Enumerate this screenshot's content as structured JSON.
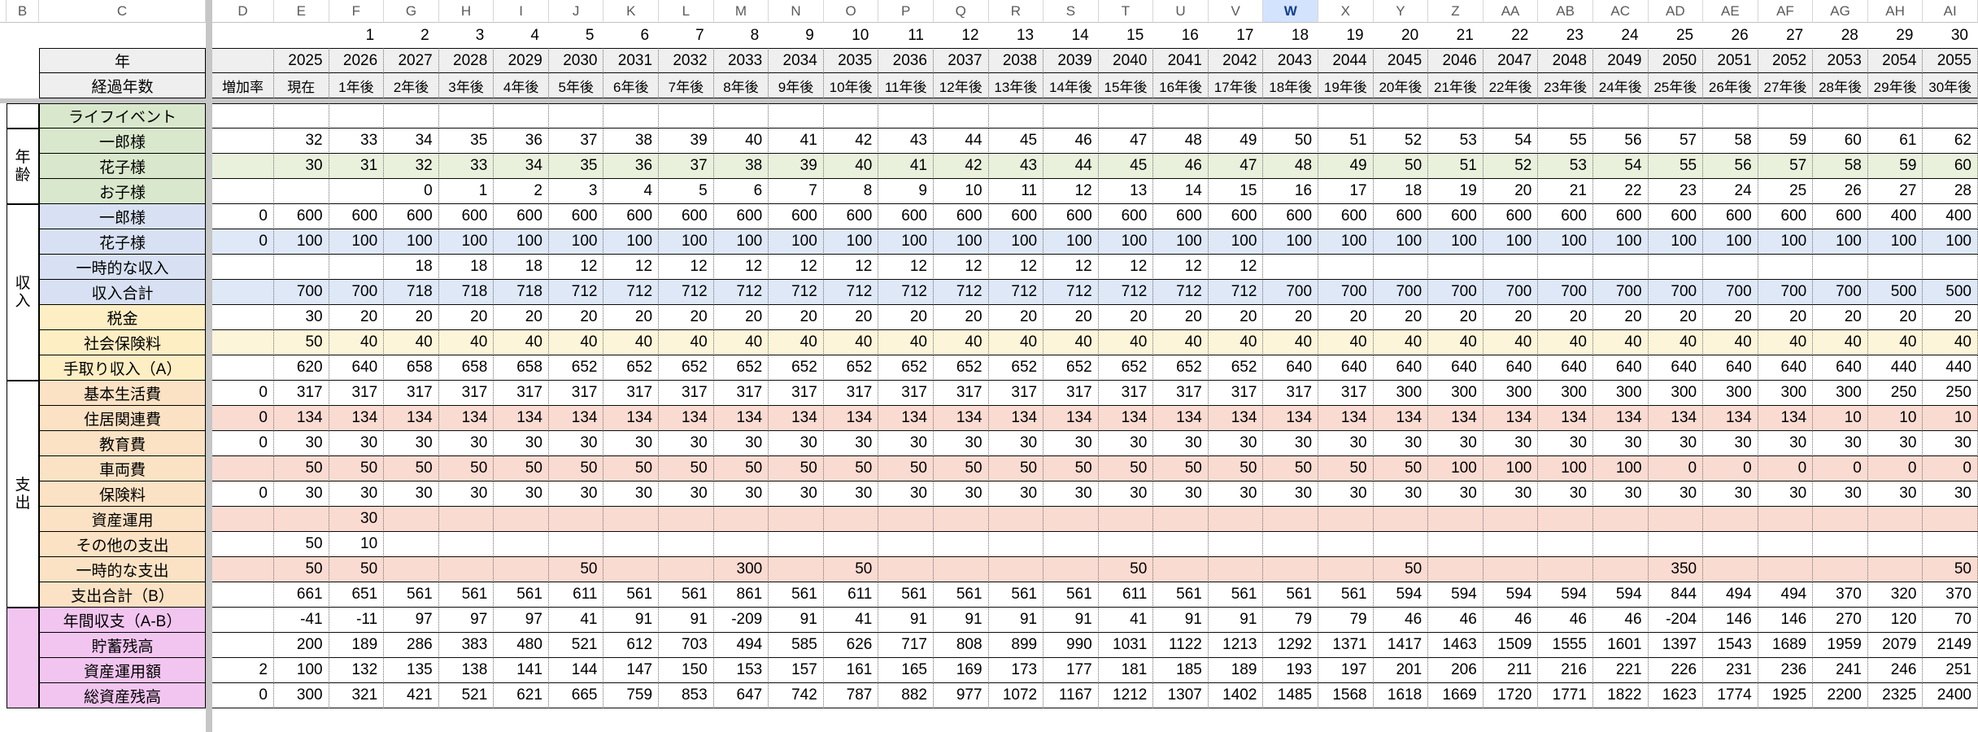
{
  "palette": {
    "white": "#ffffff",
    "gray": "#efefef",
    "green": "#d9e7cc",
    "green_row": "#e9f1dd",
    "blue": "#d8e1f3",
    "blue_row": "#dee8f7",
    "yellow": "#feeec3",
    "yellow_row": "#fdf5da",
    "peach": "#fbe2c4",
    "pink_row": "#fadbd2",
    "magenta": "#f2c5f0",
    "header_selected_bg": "#d3e3fd",
    "header_selected_text": "#123f8c",
    "pane_divider": "#c6c6c6"
  },
  "header": {
    "column_letters": [
      "B",
      "C",
      "D",
      "E",
      "F",
      "G",
      "H",
      "I",
      "J",
      "K",
      "L",
      "M",
      "N",
      "O",
      "P",
      "Q",
      "R",
      "S",
      "T",
      "U",
      "V",
      "W",
      "X",
      "Y",
      "Z",
      "AA",
      "AB",
      "AC",
      "AD",
      "AE",
      "AF",
      "AG",
      "AH",
      "AI"
    ],
    "selected_column": "W"
  },
  "top": {
    "index_numbers": [
      "",
      "1",
      "2",
      "3",
      "4",
      "5",
      "6",
      "7",
      "8",
      "9",
      "10",
      "11",
      "12",
      "13",
      "14",
      "15",
      "16",
      "17",
      "18",
      "19",
      "20",
      "21",
      "22",
      "23",
      "24",
      "25",
      "26",
      "27",
      "28",
      "29",
      "30"
    ],
    "year_label": "年",
    "years": [
      "2025",
      "2026",
      "2027",
      "2028",
      "2029",
      "2030",
      "2031",
      "2032",
      "2033",
      "2034",
      "2035",
      "2036",
      "2037",
      "2038",
      "2039",
      "2040",
      "2041",
      "2042",
      "2043",
      "2044",
      "2045",
      "2046",
      "2047",
      "2048",
      "2049",
      "2050",
      "2051",
      "2052",
      "2053",
      "2054",
      "2055"
    ],
    "elapsed_label": "経過年数",
    "rate_header": "増加率",
    "elapsed": [
      "現在",
      "1年後",
      "2年後",
      "3年後",
      "4年後",
      "5年後",
      "6年後",
      "7年後",
      "8年後",
      "9年後",
      "10年後",
      "11年後",
      "12年後",
      "13年後",
      "14年後",
      "15年後",
      "16年後",
      "17年後",
      "18年後",
      "19年後",
      "20年後",
      "21年後",
      "22年後",
      "23年後",
      "24年後",
      "25年後",
      "26年後",
      "27年後",
      "28年後",
      "29年後",
      "30年後"
    ]
  },
  "groups": [
    {
      "label": "",
      "start": 0,
      "span": 1,
      "bg": "white"
    },
    {
      "label": "年齢",
      "start": 1,
      "span": 3,
      "bg": "white"
    },
    {
      "label": "収入",
      "start": 4,
      "span": 7,
      "bg": "white"
    },
    {
      "label": "支出",
      "start": 11,
      "span": 9,
      "bg": "white"
    },
    {
      "label": "",
      "start": 20,
      "span": 4,
      "bg": "magenta"
    }
  ],
  "rows": [
    {
      "label": "ライフイベント",
      "lbg": "green",
      "rbg": "",
      "rate": "",
      "values": [
        "",
        "",
        "",
        "",
        "",
        "",
        "",
        "",
        "",
        "",
        "",
        "",
        "",
        "",
        "",
        "",
        "",
        "",
        "",
        "",
        "",
        "",
        "",
        "",
        "",
        "",
        "",
        "",
        "",
        "",
        ""
      ]
    },
    {
      "label": "一郎様",
      "lbg": "green",
      "rbg": "",
      "rate": "",
      "values": [
        "32",
        "33",
        "34",
        "35",
        "36",
        "37",
        "38",
        "39",
        "40",
        "41",
        "42",
        "43",
        "44",
        "45",
        "46",
        "47",
        "48",
        "49",
        "50",
        "51",
        "52",
        "53",
        "54",
        "55",
        "56",
        "57",
        "58",
        "59",
        "60",
        "61",
        "62"
      ]
    },
    {
      "label": "花子様",
      "lbg": "green",
      "rbg": "green_row",
      "rate": "",
      "values": [
        "30",
        "31",
        "32",
        "33",
        "34",
        "35",
        "36",
        "37",
        "38",
        "39",
        "40",
        "41",
        "42",
        "43",
        "44",
        "45",
        "46",
        "47",
        "48",
        "49",
        "50",
        "51",
        "52",
        "53",
        "54",
        "55",
        "56",
        "57",
        "58",
        "59",
        "60"
      ]
    },
    {
      "label": "お子様",
      "lbg": "green",
      "rbg": "",
      "rate": "",
      "values": [
        "",
        "",
        "0",
        "1",
        "2",
        "3",
        "4",
        "5",
        "6",
        "7",
        "8",
        "9",
        "10",
        "11",
        "12",
        "13",
        "14",
        "15",
        "16",
        "17",
        "18",
        "19",
        "20",
        "21",
        "22",
        "23",
        "24",
        "25",
        "26",
        "27",
        "28"
      ]
    },
    {
      "label": "一郎様",
      "lbg": "blue",
      "rbg": "",
      "rate": "0",
      "values": [
        "600",
        "600",
        "600",
        "600",
        "600",
        "600",
        "600",
        "600",
        "600",
        "600",
        "600",
        "600",
        "600",
        "600",
        "600",
        "600",
        "600",
        "600",
        "600",
        "600",
        "600",
        "600",
        "600",
        "600",
        "600",
        "600",
        "600",
        "600",
        "600",
        "400",
        "400"
      ]
    },
    {
      "label": "花子様",
      "lbg": "blue",
      "rbg": "blue_row",
      "rate": "0",
      "values": [
        "100",
        "100",
        "100",
        "100",
        "100",
        "100",
        "100",
        "100",
        "100",
        "100",
        "100",
        "100",
        "100",
        "100",
        "100",
        "100",
        "100",
        "100",
        "100",
        "100",
        "100",
        "100",
        "100",
        "100",
        "100",
        "100",
        "100",
        "100",
        "100",
        "100",
        "100"
      ]
    },
    {
      "label": "一時的な収入",
      "lbg": "blue",
      "rbg": "",
      "rate": "",
      "values": [
        "",
        "",
        "18",
        "18",
        "18",
        "12",
        "12",
        "12",
        "12",
        "12",
        "12",
        "12",
        "12",
        "12",
        "12",
        "12",
        "12",
        "12",
        "",
        "",
        "",
        "",
        "",
        "",
        "",
        "",
        "",
        "",
        "",
        "",
        ""
      ]
    },
    {
      "label": "収入合計",
      "lbg": "blue",
      "rbg": "blue_row",
      "rate": "",
      "values": [
        "700",
        "700",
        "718",
        "718",
        "718",
        "712",
        "712",
        "712",
        "712",
        "712",
        "712",
        "712",
        "712",
        "712",
        "712",
        "712",
        "712",
        "712",
        "700",
        "700",
        "700",
        "700",
        "700",
        "700",
        "700",
        "700",
        "700",
        "700",
        "700",
        "500",
        "500"
      ]
    },
    {
      "label": "税金",
      "lbg": "yellow",
      "rbg": "",
      "rate": "",
      "values": [
        "30",
        "20",
        "20",
        "20",
        "20",
        "20",
        "20",
        "20",
        "20",
        "20",
        "20",
        "20",
        "20",
        "20",
        "20",
        "20",
        "20",
        "20",
        "20",
        "20",
        "20",
        "20",
        "20",
        "20",
        "20",
        "20",
        "20",
        "20",
        "20",
        "20",
        "20"
      ]
    },
    {
      "label": "社会保険料",
      "lbg": "yellow",
      "rbg": "yellow_row",
      "rate": "",
      "values": [
        "50",
        "40",
        "40",
        "40",
        "40",
        "40",
        "40",
        "40",
        "40",
        "40",
        "40",
        "40",
        "40",
        "40",
        "40",
        "40",
        "40",
        "40",
        "40",
        "40",
        "40",
        "40",
        "40",
        "40",
        "40",
        "40",
        "40",
        "40",
        "40",
        "40",
        "40"
      ]
    },
    {
      "label": "手取り収入（A）",
      "lbg": "yellow",
      "rbg": "",
      "rate": "",
      "values": [
        "620",
        "640",
        "658",
        "658",
        "658",
        "652",
        "652",
        "652",
        "652",
        "652",
        "652",
        "652",
        "652",
        "652",
        "652",
        "652",
        "652",
        "652",
        "640",
        "640",
        "640",
        "640",
        "640",
        "640",
        "640",
        "640",
        "640",
        "640",
        "640",
        "440",
        "440"
      ]
    },
    {
      "label": "基本生活費",
      "lbg": "peach",
      "rbg": "",
      "rate": "0",
      "values": [
        "317",
        "317",
        "317",
        "317",
        "317",
        "317",
        "317",
        "317",
        "317",
        "317",
        "317",
        "317",
        "317",
        "317",
        "317",
        "317",
        "317",
        "317",
        "317",
        "317",
        "300",
        "300",
        "300",
        "300",
        "300",
        "300",
        "300",
        "300",
        "300",
        "250",
        "250"
      ]
    },
    {
      "label": "住居関連費",
      "lbg": "peach",
      "rbg": "pink_row",
      "rate": "0",
      "values": [
        "134",
        "134",
        "134",
        "134",
        "134",
        "134",
        "134",
        "134",
        "134",
        "134",
        "134",
        "134",
        "134",
        "134",
        "134",
        "134",
        "134",
        "134",
        "134",
        "134",
        "134",
        "134",
        "134",
        "134",
        "134",
        "134",
        "134",
        "134",
        "10",
        "10",
        "10"
      ]
    },
    {
      "label": "教育費",
      "lbg": "peach",
      "rbg": "",
      "rate": "0",
      "values": [
        "30",
        "30",
        "30",
        "30",
        "30",
        "30",
        "30",
        "30",
        "30",
        "30",
        "30",
        "30",
        "30",
        "30",
        "30",
        "30",
        "30",
        "30",
        "30",
        "30",
        "30",
        "30",
        "30",
        "30",
        "30",
        "30",
        "30",
        "30",
        "30",
        "30",
        "30"
      ]
    },
    {
      "label": "車両費",
      "lbg": "peach",
      "rbg": "pink_row",
      "rate": "",
      "values": [
        "50",
        "50",
        "50",
        "50",
        "50",
        "50",
        "50",
        "50",
        "50",
        "50",
        "50",
        "50",
        "50",
        "50",
        "50",
        "50",
        "50",
        "50",
        "50",
        "50",
        "50",
        "100",
        "100",
        "100",
        "100",
        "0",
        "0",
        "0",
        "0",
        "0",
        "0"
      ]
    },
    {
      "label": "保険料",
      "lbg": "peach",
      "rbg": "",
      "rate": "0",
      "values": [
        "30",
        "30",
        "30",
        "30",
        "30",
        "30",
        "30",
        "30",
        "30",
        "30",
        "30",
        "30",
        "30",
        "30",
        "30",
        "30",
        "30",
        "30",
        "30",
        "30",
        "30",
        "30",
        "30",
        "30",
        "30",
        "30",
        "30",
        "30",
        "30",
        "30",
        "30"
      ]
    },
    {
      "label": "資産運用",
      "lbg": "peach",
      "rbg": "pink_row",
      "rate": "",
      "values": [
        "",
        "30",
        "",
        "",
        "",
        "",
        "",
        "",
        "",
        "",
        "",
        "",
        "",
        "",
        "",
        "",
        "",
        "",
        "",
        "",
        "",
        "",
        "",
        "",
        "",
        "",
        "",
        "",
        "",
        "",
        ""
      ]
    },
    {
      "label": "その他の支出",
      "lbg": "peach",
      "rbg": "",
      "rate": "",
      "values": [
        "50",
        "10",
        "",
        "",
        "",
        "",
        "",
        "",
        "",
        "",
        "",
        "",
        "",
        "",
        "",
        "",
        "",
        "",
        "",
        "",
        "",
        "",
        "",
        "",
        "",
        "",
        "",
        "",
        "",
        "",
        ""
      ]
    },
    {
      "label": "一時的な支出",
      "lbg": "peach",
      "rbg": "pink_row",
      "rate": "",
      "values": [
        "50",
        "50",
        "",
        "",
        "",
        "50",
        "",
        "",
        "300",
        "",
        "50",
        "",
        "",
        "",
        "",
        "50",
        "",
        "",
        "",
        "",
        "50",
        "",
        "",
        "",
        "",
        "350",
        "",
        "",
        "",
        "",
        "50"
      ]
    },
    {
      "label": "支出合計（B）",
      "lbg": "peach",
      "rbg": "",
      "rate": "",
      "values": [
        "661",
        "651",
        "561",
        "561",
        "561",
        "611",
        "561",
        "561",
        "861",
        "561",
        "611",
        "561",
        "561",
        "561",
        "561",
        "611",
        "561",
        "561",
        "561",
        "561",
        "594",
        "594",
        "594",
        "594",
        "594",
        "844",
        "494",
        "494",
        "370",
        "320",
        "370"
      ]
    },
    {
      "label": "年間収支（A-B）",
      "lbg": "magenta",
      "rbg": "",
      "rate": "",
      "values": [
        "-41",
        "-11",
        "97",
        "97",
        "97",
        "41",
        "91",
        "91",
        "-209",
        "91",
        "41",
        "91",
        "91",
        "91",
        "91",
        "41",
        "91",
        "91",
        "79",
        "79",
        "46",
        "46",
        "46",
        "46",
        "46",
        "-204",
        "146",
        "146",
        "270",
        "120",
        "70"
      ]
    },
    {
      "label": "貯蓄残高",
      "lbg": "magenta",
      "rbg": "",
      "rate": "",
      "values": [
        "200",
        "189",
        "286",
        "383",
        "480",
        "521",
        "612",
        "703",
        "494",
        "585",
        "626",
        "717",
        "808",
        "899",
        "990",
        "1031",
        "1122",
        "1213",
        "1292",
        "1371",
        "1417",
        "1463",
        "1509",
        "1555",
        "1601",
        "1397",
        "1543",
        "1689",
        "1959",
        "2079",
        "2149"
      ]
    },
    {
      "label": "資産運用額",
      "lbg": "magenta",
      "rbg": "",
      "rate": "2",
      "values": [
        "100",
        "132",
        "135",
        "138",
        "141",
        "144",
        "147",
        "150",
        "153",
        "157",
        "161",
        "165",
        "169",
        "173",
        "177",
        "181",
        "185",
        "189",
        "193",
        "197",
        "201",
        "206",
        "211",
        "216",
        "221",
        "226",
        "231",
        "236",
        "241",
        "246",
        "251"
      ]
    },
    {
      "label": "総資産残高",
      "lbg": "magenta",
      "rbg": "",
      "rate": "0",
      "values": [
        "300",
        "321",
        "421",
        "521",
        "621",
        "665",
        "759",
        "853",
        "647",
        "742",
        "787",
        "882",
        "977",
        "1072",
        "1167",
        "1212",
        "1307",
        "1402",
        "1485",
        "1568",
        "1618",
        "1669",
        "1720",
        "1771",
        "1822",
        "1623",
        "1774",
        "1925",
        "2200",
        "2325",
        "2400"
      ]
    }
  ]
}
